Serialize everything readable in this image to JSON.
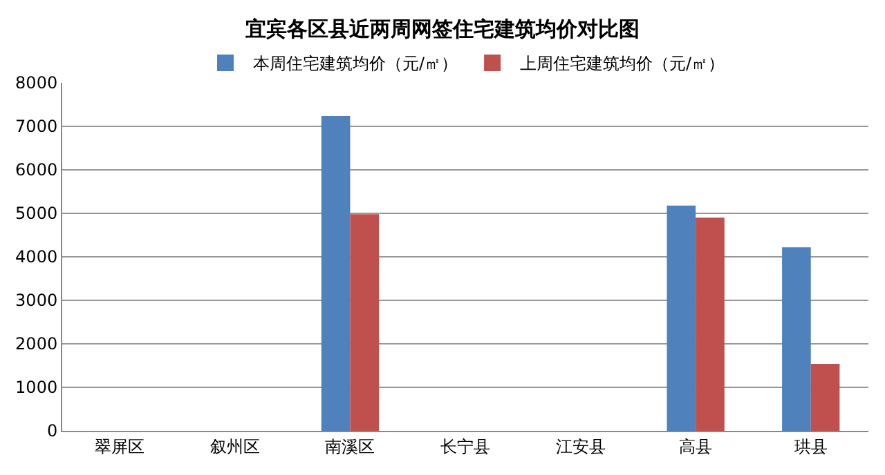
{
  "chart_data": {
    "type": "bar",
    "title": "宜宾各区县近两周网签住宅建筑均价对比图",
    "categories": [
      "翠屏区",
      "叙州区",
      "南溪区",
      "长宁县",
      "江安县",
      "高县",
      "珙县"
    ],
    "series": [
      {
        "name": "本周住宅建筑均价（元/㎡）",
        "color": "#4f81bd",
        "values": [
          null,
          null,
          7240,
          null,
          null,
          5180,
          4220
        ]
      },
      {
        "name": "上周住宅建筑均价（元/㎡）",
        "color": "#c0504d",
        "values": [
          null,
          null,
          4980,
          null,
          null,
          4900,
          1540
        ]
      }
    ],
    "ylim": [
      0,
      8000
    ],
    "yticks": [
      0,
      1000,
      2000,
      3000,
      4000,
      5000,
      6000,
      7000,
      8000
    ],
    "grid": "y",
    "legend": "top"
  }
}
